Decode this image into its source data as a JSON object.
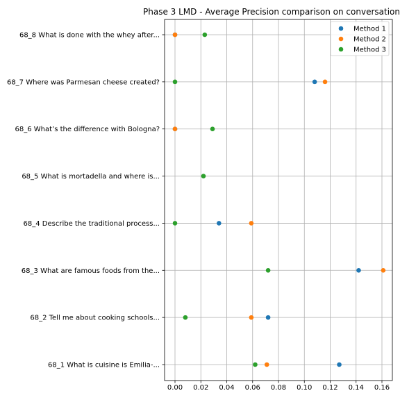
{
  "chart_data": {
    "type": "scatter",
    "title": "Phase 3 LMD - Average Precision comparison on conversation",
    "xlabel": "",
    "ylabel": "",
    "xlim": [
      -0.009,
      0.169
    ],
    "xticks": [
      0.0,
      0.02,
      0.04,
      0.06,
      0.08,
      0.1,
      0.12,
      0.14,
      0.16
    ],
    "xtick_labels": [
      "0.00",
      "0.02",
      "0.04",
      "0.06",
      "0.08",
      "0.10",
      "0.12",
      "0.14",
      "0.16"
    ],
    "grid": true,
    "legend_position": "top-right",
    "categories": [
      "68_1 What is cuisine is Emilia-...",
      "68_2 Tell me about cooking schools...",
      "68_3 What are famous foods from the...",
      "68_4 Describe the traditional process...",
      "68_5 What is mortadella and where is...",
      "68_6 What’s the difference with Bologna?",
      "68_7 Where was Parmesan cheese created?",
      "68_8 What is done with the whey after..."
    ],
    "series": [
      {
        "name": "Method 1",
        "color": "#1f77b4",
        "values": [
          0.127,
          0.072,
          0.142,
          0.034,
          null,
          0.0,
          0.108,
          0.0
        ]
      },
      {
        "name": "Method 2",
        "color": "#ff7f0e",
        "values": [
          0.071,
          0.059,
          0.161,
          0.059,
          null,
          0.0,
          0.116,
          0.0
        ]
      },
      {
        "name": "Method 3",
        "color": "#2ca02c",
        "values": [
          0.062,
          0.008,
          0.072,
          0.0,
          0.022,
          0.029,
          0.0,
          0.023
        ]
      }
    ]
  }
}
